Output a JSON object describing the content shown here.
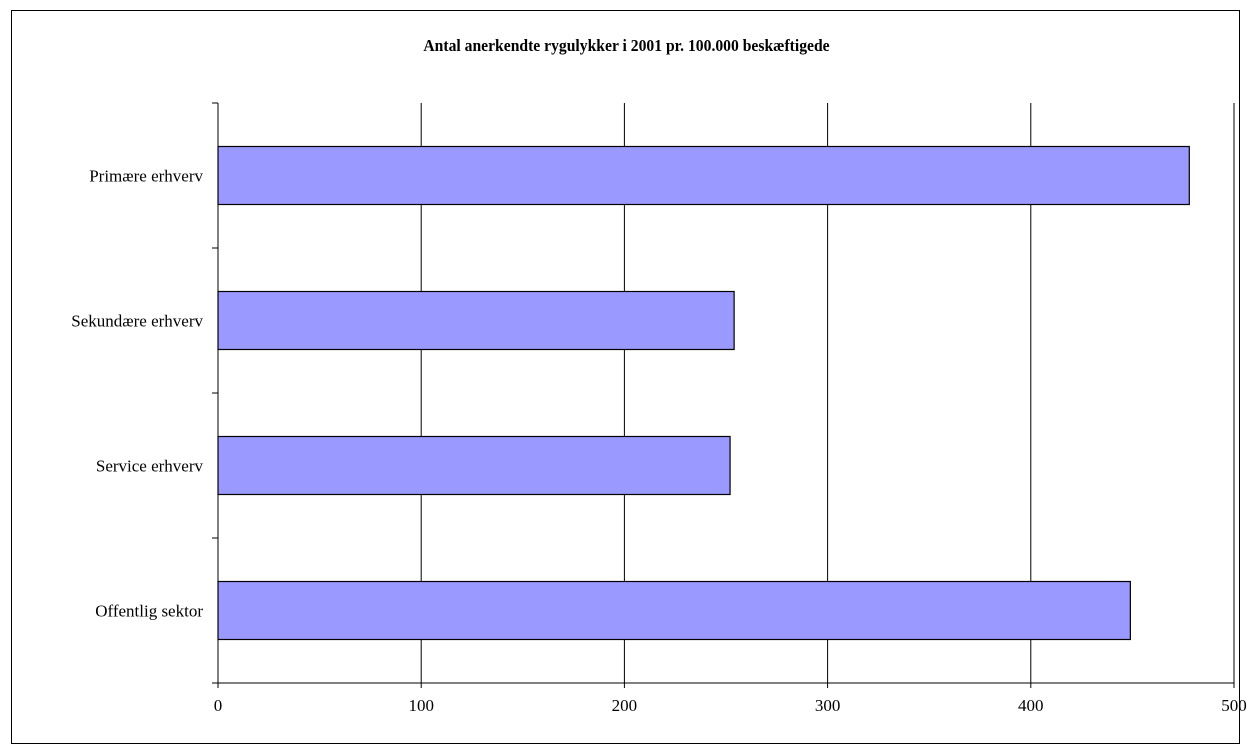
{
  "chart_data": {
    "type": "bar",
    "orientation": "horizontal",
    "title": "Antal anerkendte rygulykker i 2001 pr. 100.000 beskæftigede",
    "categories": [
      "Primære erhverv",
      "Sekundære erhverv",
      "Service erhverv",
      "Offentlig sektor"
    ],
    "values": [
      478,
      254,
      252,
      449
    ],
    "xlabel": "",
    "ylabel": "",
    "xlim": [
      0,
      500
    ],
    "xticks": [
      "0",
      "100",
      "200",
      "300",
      "400",
      "500"
    ],
    "grid": "vertical",
    "legend": "none",
    "bar_color": "#9999ff",
    "bar_edge_color": "#000000"
  }
}
